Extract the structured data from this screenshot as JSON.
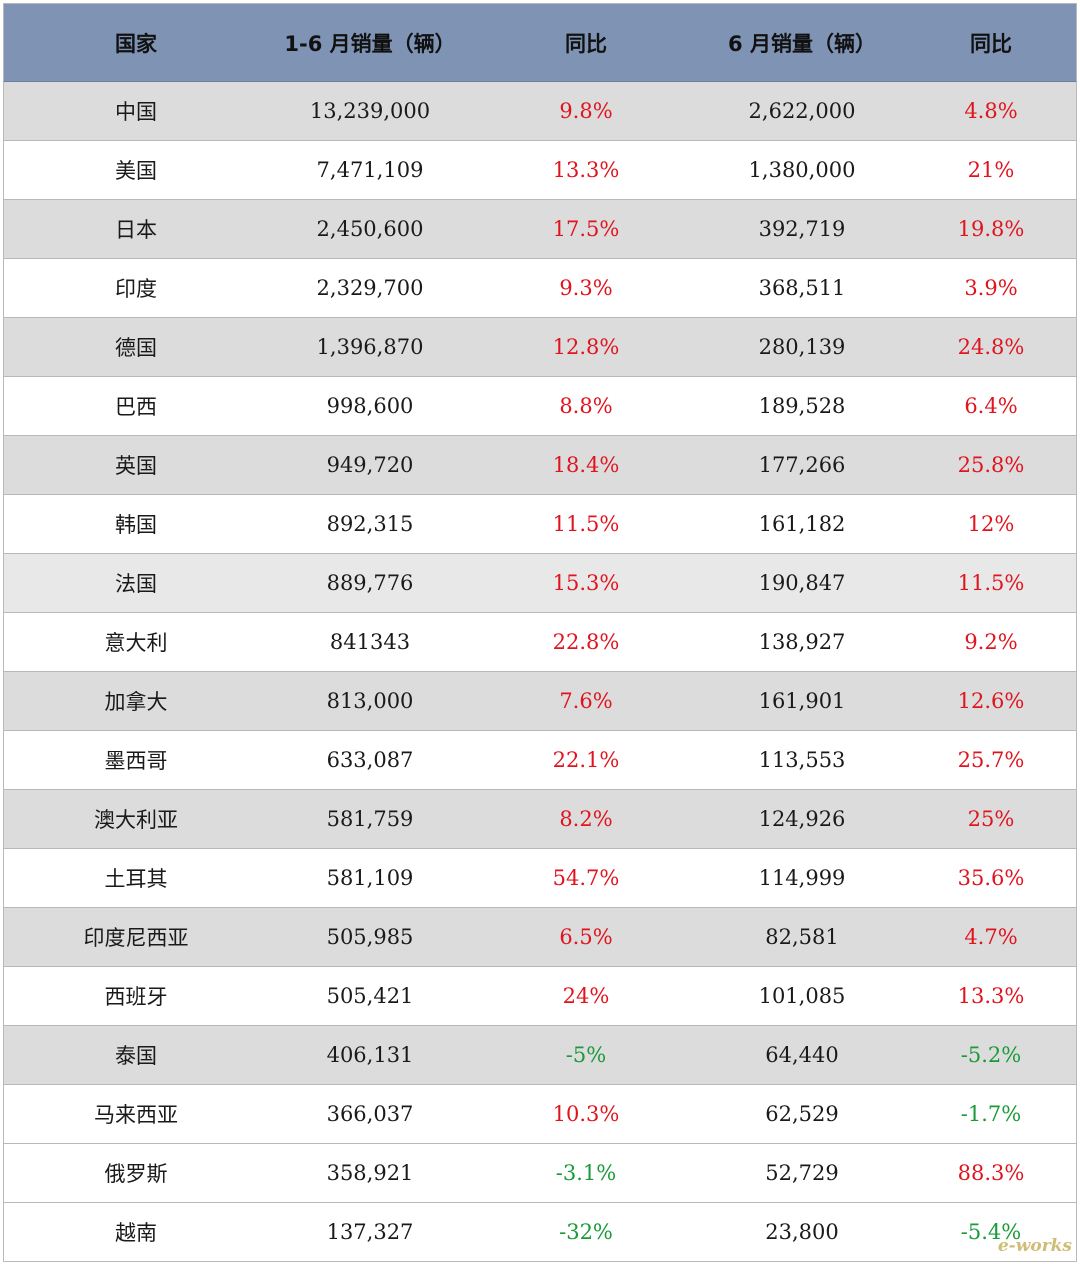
{
  "colors": {
    "header_bg": "#7f94b5",
    "shade": "#dcdcdc",
    "positive": "#e0141e",
    "negative": "#1a9a38"
  },
  "header": {
    "country": "国家",
    "h1_sales": "1-6 月销量（辆）",
    "h1_yoy": "同比",
    "jun_sales": "6 月销量（辆）",
    "jun_yoy": "同比"
  },
  "rows": [
    {
      "country": "中国",
      "h1_sales": "13,239,000",
      "h1_yoy": "9.8%",
      "jun_sales": "2,622,000",
      "jun_yoy": "4.8%"
    },
    {
      "country": "美国",
      "h1_sales": "7,471,109",
      "h1_yoy": "13.3%",
      "jun_sales": "1,380,000",
      "jun_yoy": "21%"
    },
    {
      "country": "日本",
      "h1_sales": "2,450,600",
      "h1_yoy": "17.5%",
      "jun_sales": "392,719",
      "jun_yoy": "19.8%"
    },
    {
      "country": "印度",
      "h1_sales": "2,329,700",
      "h1_yoy": "9.3%",
      "jun_sales": "368,511",
      "jun_yoy": "3.9%"
    },
    {
      "country": "德国",
      "h1_sales": "1,396,870",
      "h1_yoy": "12.8%",
      "jun_sales": "280,139",
      "jun_yoy": "24.8%"
    },
    {
      "country": "巴西",
      "h1_sales": "998,600",
      "h1_yoy": "8.8%",
      "jun_sales": "189,528",
      "jun_yoy": "6.4%"
    },
    {
      "country": "英国",
      "h1_sales": "949,720",
      "h1_yoy": "18.4%",
      "jun_sales": "177,266",
      "jun_yoy": "25.8%"
    },
    {
      "country": "韩国",
      "h1_sales": "892,315",
      "h1_yoy": "11.5%",
      "jun_sales": "161,182",
      "jun_yoy": "12%"
    },
    {
      "country": "法国",
      "h1_sales": "889,776",
      "h1_yoy": "15.3%",
      "jun_sales": "190,847",
      "jun_yoy": "11.5%"
    },
    {
      "country": "意大利",
      "h1_sales": "841343",
      "h1_yoy": "22.8%",
      "jun_sales": "138,927",
      "jun_yoy": "9.2%"
    },
    {
      "country": "加拿大",
      "h1_sales": "813,000",
      "h1_yoy": "7.6%",
      "jun_sales": "161,901",
      "jun_yoy": "12.6%"
    },
    {
      "country": "墨西哥",
      "h1_sales": "633,087",
      "h1_yoy": "22.1%",
      "jun_sales": "113,553",
      "jun_yoy": "25.7%"
    },
    {
      "country": "澳大利亚",
      "h1_sales": "581,759",
      "h1_yoy": "8.2%",
      "jun_sales": "124,926",
      "jun_yoy": "25%"
    },
    {
      "country": "土耳其",
      "h1_sales": "581,109",
      "h1_yoy": "54.7%",
      "jun_sales": "114,999",
      "jun_yoy": "35.6%"
    },
    {
      "country": "印度尼西亚",
      "h1_sales": "505,985",
      "h1_yoy": "6.5%",
      "jun_sales": "82,581",
      "jun_yoy": "4.7%"
    },
    {
      "country": "西班牙",
      "h1_sales": "505,421",
      "h1_yoy": "24%",
      "jun_sales": "101,085",
      "jun_yoy": "13.3%"
    },
    {
      "country": "泰国",
      "h1_sales": "406,131",
      "h1_yoy": "-5%",
      "jun_sales": "64,440",
      "jun_yoy": "-5.2%"
    },
    {
      "country": "马来西亚",
      "h1_sales": "366,037",
      "h1_yoy": "10.3%",
      "jun_sales": "62,529",
      "jun_yoy": "-1.7%"
    },
    {
      "country": "俄罗斯",
      "h1_sales": "358,921",
      "h1_yoy": "-3.1%",
      "jun_sales": "52,729",
      "jun_yoy": "88.3%"
    },
    {
      "country": "越南",
      "h1_sales": "137,327",
      "h1_yoy": "-32%",
      "jun_sales": "23,800",
      "jun_yoy": "-5.4%"
    }
  ],
  "watermark": "e-works"
}
